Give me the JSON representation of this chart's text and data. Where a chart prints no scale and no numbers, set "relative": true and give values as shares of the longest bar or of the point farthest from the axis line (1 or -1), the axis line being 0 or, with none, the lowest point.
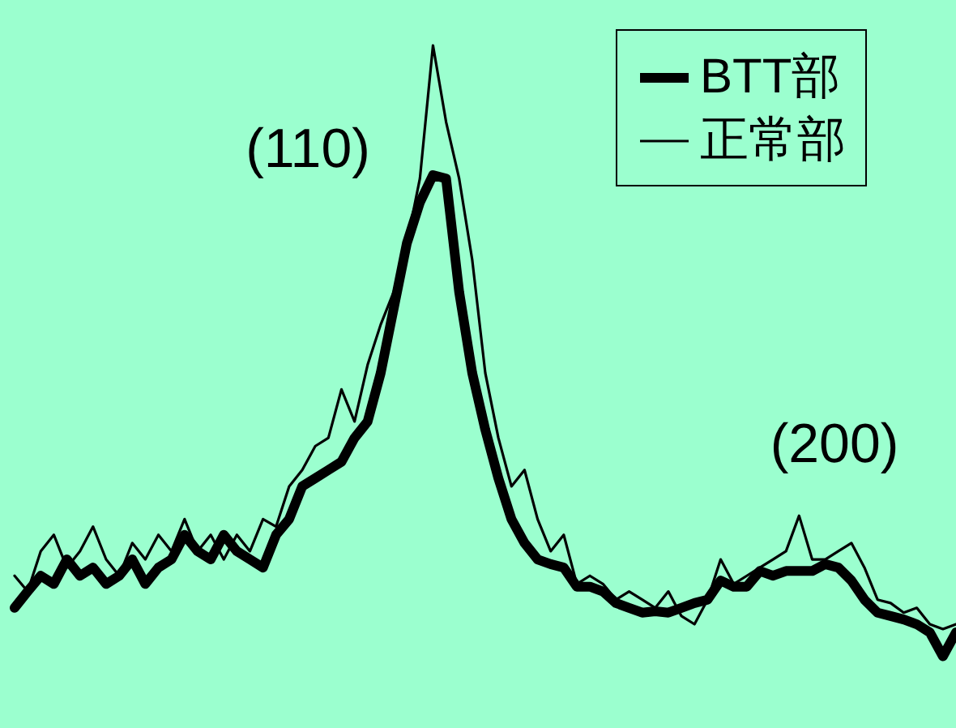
{
  "chart_data": {
    "type": "line",
    "relative": true,
    "categories": [
      null,
      null,
      null,
      null,
      null,
      null,
      null,
      null,
      null,
      null,
      null,
      null,
      null,
      null,
      null,
      null,
      null,
      null,
      null,
      null,
      null,
      null,
      null,
      null,
      null,
      null,
      null,
      null,
      null,
      null,
      null,
      null,
      null,
      null,
      null,
      null,
      null,
      null,
      null,
      null,
      null,
      null,
      null,
      null,
      null,
      null,
      null,
      null,
      null,
      null,
      null,
      null,
      null,
      null,
      null,
      null,
      null,
      null,
      null,
      null,
      null,
      null,
      null,
      null,
      null,
      null,
      null,
      null,
      null,
      null,
      null,
      null,
      null
    ],
    "series": [
      {
        "name": "BTT部",
        "color": "#000000",
        "values": [
          0.176,
          0.2,
          0.223,
          0.211,
          0.247,
          0.223,
          0.235,
          0.211,
          0.223,
          0.247,
          0.211,
          0.235,
          0.247,
          0.283,
          0.259,
          0.247,
          0.283,
          0.259,
          0.247,
          0.235,
          0.283,
          0.306,
          0.354,
          0.366,
          0.378,
          0.39,
          0.425,
          0.449,
          0.52,
          0.615,
          0.71,
          0.77,
          0.81,
          0.805,
          0.639,
          0.52,
          0.437,
          0.366,
          0.306,
          0.271,
          0.247,
          0.24,
          0.235,
          0.207,
          0.207,
          0.2,
          0.183,
          0.176,
          0.169,
          0.171,
          0.169,
          0.176,
          0.183,
          0.188,
          0.216,
          0.207,
          0.207,
          0.23,
          0.223,
          0.23,
          0.23,
          0.23,
          0.24,
          0.235,
          0.216,
          0.188,
          0.169,
          0.164,
          0.159,
          0.152,
          0.14,
          0.105,
          0.14
        ]
      },
      {
        "name": "正常部",
        "color": "#000000",
        "values": [
          0.223,
          0.2,
          0.259,
          0.283,
          0.235,
          0.259,
          0.295,
          0.247,
          0.223,
          0.271,
          0.247,
          0.283,
          0.259,
          0.306,
          0.259,
          0.283,
          0.247,
          0.283,
          0.259,
          0.306,
          0.295,
          0.354,
          0.378,
          0.413,
          0.425,
          0.496,
          0.449,
          0.532,
          0.591,
          0.639,
          0.71,
          0.805,
          1,
          0.888,
          0.805,
          0.686,
          0.52,
          0.425,
          0.354,
          0.378,
          0.306,
          0.259,
          0.283,
          0.211,
          0.223,
          0.211,
          0.188,
          0.2,
          0.188,
          0.176,
          0.2,
          0.164,
          0.152,
          0.188,
          0.247,
          0.211,
          0.223,
          0.235,
          0.247,
          0.259,
          0.311,
          0.247,
          0.247,
          0.259,
          0.271,
          0.235,
          0.188,
          0.183,
          0.169,
          0.176,
          0.152,
          0.145,
          0.152
        ]
      }
    ],
    "annotations": [
      "(110)",
      "(200)"
    ],
    "legend": "top right",
    "grid": false,
    "line_style": "solid"
  }
}
